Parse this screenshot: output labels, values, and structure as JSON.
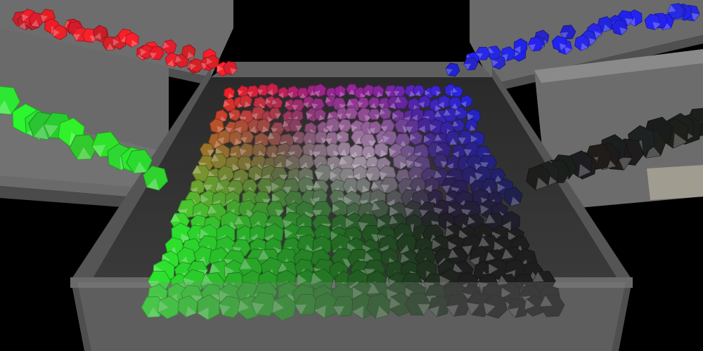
{
  "scene": {
    "background": "#000000",
    "bin_color": "#5c5c5c",
    "chute_color": "#6f6f6f",
    "palette": {
      "red": "#e8202a",
      "green": "#2ee02e",
      "blue": "#2626e6",
      "black": "#1e1e1e"
    },
    "particle_shape": "icosahedron"
  }
}
